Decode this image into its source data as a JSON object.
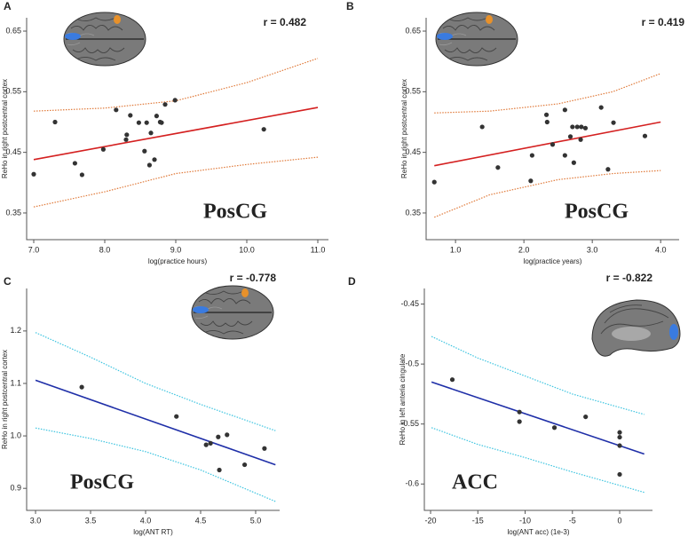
{
  "chart_data": [
    {
      "type": "scatter",
      "panel": "A",
      "r_label": "r = 0.482",
      "region": "PosCG",
      "x_label": "log(practice hours)",
      "y_label": "ReHo in right postcentral cortex",
      "xlim": [
        6.9,
        11.15
      ],
      "ylim": [
        0.306,
        0.672
      ],
      "xticks": [
        {
          "value": 7,
          "label": "7.0"
        },
        {
          "value": 8,
          "label": "8.0"
        },
        {
          "value": 9,
          "label": "9.0"
        },
        {
          "value": 10,
          "label": "10.0"
        },
        {
          "value": 11,
          "label": "11.0"
        }
      ],
      "yticks": [
        0.35,
        0.45,
        0.55,
        0.65
      ],
      "x": [
        7.0,
        7.3,
        7.58,
        7.68,
        7.98,
        8.16,
        8.3,
        8.31,
        8.36,
        8.48,
        8.56,
        8.59,
        8.63,
        8.65,
        8.7,
        8.73,
        8.78,
        8.8,
        8.85,
        8.99,
        10.24
      ],
      "y": [
        0.414,
        0.5,
        0.432,
        0.413,
        0.455,
        0.52,
        0.471,
        0.479,
        0.511,
        0.499,
        0.452,
        0.499,
        0.429,
        0.482,
        0.438,
        0.51,
        0.5,
        0.499,
        0.529,
        0.536,
        0.488
      ],
      "point_color": "#333333",
      "fit": {
        "color": "#d42020",
        "x": [
          7.0,
          11.0
        ],
        "y": [
          0.438,
          0.524
        ]
      },
      "ci_color": "#e07a3a",
      "ci_upper": {
        "x": [
          7.0,
          8.0,
          9.0,
          10.0,
          11.0
        ],
        "y": [
          0.518,
          0.523,
          0.535,
          0.565,
          0.605
        ]
      },
      "ci_lower": {
        "x": [
          7.0,
          8.0,
          9.0,
          10.0,
          11.0
        ],
        "y": [
          0.36,
          0.385,
          0.415,
          0.43,
          0.442
        ]
      }
    },
    {
      "type": "scatter",
      "panel": "B",
      "r_label": "r = 0.419",
      "region": "PosCG",
      "x_label": "log(practice years)",
      "y_label": "ReHo in right postcentral cortex",
      "xlim": [
        0.57,
        4.27
      ],
      "ylim": [
        0.306,
        0.672
      ],
      "xticks": [
        {
          "value": 1,
          "label": "1.0"
        },
        {
          "value": 2,
          "label": "2.0"
        },
        {
          "value": 3,
          "label": "3.0"
        },
        {
          "value": 4,
          "label": "4.0"
        }
      ],
      "yticks": [
        0.35,
        0.45,
        0.55,
        0.65
      ],
      "x": [
        0.69,
        1.39,
        1.62,
        2.1,
        2.12,
        2.33,
        2.34,
        2.42,
        2.6,
        2.6,
        2.68,
        2.71,
        2.73,
        2.78,
        2.83,
        2.84,
        2.9,
        3.13,
        3.23,
        3.31,
        3.77
      ],
      "y": [
        0.401,
        0.492,
        0.425,
        0.403,
        0.445,
        0.512,
        0.5,
        0.463,
        0.52,
        0.445,
        0.476,
        0.492,
        0.433,
        0.492,
        0.471,
        0.492,
        0.49,
        0.524,
        0.422,
        0.499,
        0.477
      ],
      "point_color": "#333333",
      "fit": {
        "color": "#d42020",
        "x": [
          0.69,
          4.0
        ],
        "y": [
          0.428,
          0.5
        ]
      },
      "ci_color": "#e07a3a",
      "ci_upper": {
        "x": [
          0.69,
          1.5,
          2.5,
          3.3,
          4.0
        ],
        "y": [
          0.515,
          0.518,
          0.53,
          0.55,
          0.58
        ]
      },
      "ci_lower": {
        "x": [
          0.69,
          1.5,
          2.5,
          3.3,
          4.0
        ],
        "y": [
          0.343,
          0.38,
          0.405,
          0.415,
          0.42
        ]
      }
    },
    {
      "type": "scatter",
      "panel": "C",
      "r_label": "r = -0.778",
      "region": "PosCG",
      "x_label": "log(ANT RT)",
      "y_label": "ReHo in right postcentral cortex",
      "xlim": [
        2.919,
        5.218
      ],
      "ylim": [
        0.858,
        1.281
      ],
      "xticks": [
        {
          "value": 3,
          "label": "3.0"
        },
        3.5,
        {
          "value": 4,
          "label": "4.0"
        },
        4.5,
        {
          "value": 5,
          "label": "5.0"
        }
      ],
      "yticks": [
        0.9,
        {
          "value": 1,
          "label": "1.0"
        },
        1.1,
        1.2
      ],
      "x": [
        3.42,
        4.28,
        4.55,
        4.59,
        4.66,
        4.67,
        4.74,
        4.9,
        5.08
      ],
      "y": [
        1.093,
        1.037,
        0.983,
        0.986,
        0.998,
        0.935,
        1.002,
        0.945,
        0.976
      ],
      "point_color": "#333333",
      "fit": {
        "color": "#1f2fa8",
        "x": [
          3.0,
          5.18
        ],
        "y": [
          1.106,
          0.945
        ]
      },
      "ci_color": "#3cc4e0",
      "ci_upper": {
        "x": [
          3.0,
          3.5,
          4.0,
          4.5,
          5.18
        ],
        "y": [
          1.197,
          1.15,
          1.1,
          1.06,
          1.01
        ]
      },
      "ci_lower": {
        "x": [
          3.0,
          3.5,
          4.0,
          4.5,
          5.18
        ],
        "y": [
          1.015,
          0.995,
          0.97,
          0.935,
          0.875
        ]
      }
    },
    {
      "type": "scatter",
      "panel": "D",
      "r_label": "r = -0.822",
      "region": "ACC",
      "x_label": "log(ANT acc) (1e-3)",
      "y_label": "ReHo in left anteria cingulate",
      "xlim": [
        -20.66,
        3.47
      ],
      "ylim": [
        -0.622,
        -0.437
      ],
      "xticks": [
        -20,
        -15,
        -10,
        -5,
        0
      ],
      "yticks": [
        -0.6,
        -0.55,
        -0.5,
        -0.45
      ],
      "x": [
        -17.7,
        -10.6,
        -10.6,
        -6.9,
        -3.6,
        0,
        0,
        0,
        0
      ],
      "y": [
        -0.513,
        -0.54,
        -0.548,
        -0.553,
        -0.544,
        -0.557,
        -0.561,
        -0.568,
        -0.592
      ],
      "point_color": "#333333",
      "fit": {
        "color": "#1f2fa8",
        "x": [
          -19.9,
          2.6
        ],
        "y": [
          -0.515,
          -0.575
        ]
      },
      "ci_color": "#3cc4e0",
      "ci_upper": {
        "x": [
          -19.9,
          -15,
          -10,
          -5,
          2.6
        ],
        "y": [
          -0.477,
          -0.495,
          -0.51,
          -0.525,
          -0.542
        ]
      },
      "ci_lower": {
        "x": [
          -19.9,
          -15,
          -10,
          -5,
          2.6
        ],
        "y": [
          -0.553,
          -0.567,
          -0.578,
          -0.59,
          -0.607
        ]
      }
    }
  ]
}
